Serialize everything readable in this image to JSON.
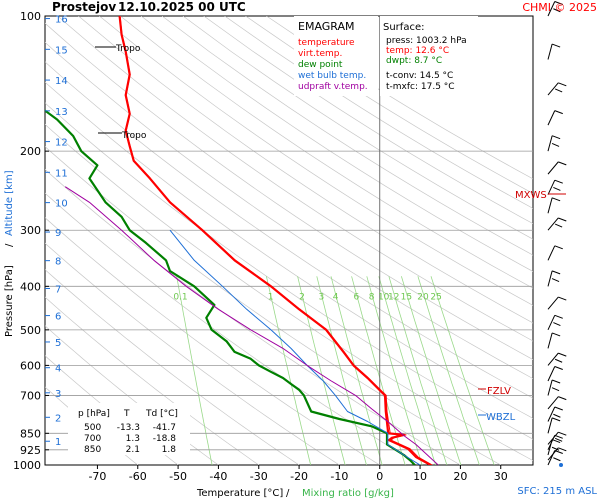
{
  "header": {
    "station": "Prostejov",
    "datetime": "12.10.2025 00 UTC",
    "credit": "CHMI © 2025"
  },
  "legend": {
    "title": "EMAGRAM",
    "items": [
      {
        "label": "temperature",
        "color": "#ff0000"
      },
      {
        "label": "virt.temp.",
        "color": "#ff0000"
      },
      {
        "label": "dew point",
        "color": "#008000"
      },
      {
        "label": "wet bulb temp.",
        "color": "#1e6fd6"
      },
      {
        "label": "udpraft v.temp.",
        "color": "#a000a0"
      }
    ]
  },
  "surface": {
    "title": "Surface:",
    "press": "press: 1003.2 hPa",
    "temp": "temp: 12.6 °C",
    "dwpt": "dwpt: 8.7 °C",
    "tconv": "t-conv: 14.5 °C",
    "tmxfc": "t-mxfc: 17.5 °C"
  },
  "table": {
    "headers": [
      "p [hPa]",
      "T",
      "Td [°C]"
    ],
    "rows": [
      [
        "500",
        "-13.3",
        "-41.7"
      ],
      [
        "700",
        "1.3",
        "-18.8"
      ],
      [
        "850",
        "2.1",
        "1.8"
      ]
    ]
  },
  "levels": {
    "mxws": "MXWS",
    "fzlv": "FZLV",
    "wbzl": "WBZL",
    "tropo": "Tropo",
    "sfc": "SFC: 215 m ASL"
  },
  "axes": {
    "xlabel_temp": "Temperature [°C]",
    "xlabel_sep": "/",
    "xlabel_mix": "Mixing ratio [g/kg]",
    "ylabel_press": "Pressure [hPa]",
    "ylabel_sep": "/",
    "ylabel_alt": "Altitude [km]"
  },
  "chart_data": {
    "type": "line",
    "x_ticks": [
      -70,
      -60,
      -50,
      -40,
      -30,
      -20,
      -10,
      0,
      10,
      20,
      30
    ],
    "x_range": [
      -83,
      38
    ],
    "y_range_hpa": [
      1000,
      100
    ],
    "y_scale": "log",
    "pressure_ticks": [
      100,
      200,
      300,
      400,
      500,
      600,
      700,
      850,
      925,
      1000
    ],
    "altitude_ticks_km": [
      1,
      2,
      3,
      4,
      5,
      6,
      7,
      8,
      9,
      10,
      11,
      12,
      13,
      14,
      15,
      16
    ],
    "mixing_ratio_labels": [
      "0.1",
      "1",
      "2",
      "3",
      "4",
      "6",
      "8",
      "10",
      "12",
      "15",
      "20",
      "25"
    ],
    "isotherm_zero_line": 0,
    "series": [
      {
        "name": "temperature",
        "color": "#ff0000",
        "points": [
          [
            12.6,
            1000
          ],
          [
            9,
            960
          ],
          [
            7,
            920
          ],
          [
            2.3,
            880
          ],
          [
            3,
            870
          ],
          [
            6,
            857
          ],
          [
            2.1,
            850
          ],
          [
            1.5,
            760
          ],
          [
            1.3,
            700
          ],
          [
            -3,
            640
          ],
          [
            -6.5,
            600
          ],
          [
            -9,
            560
          ],
          [
            -13.3,
            500
          ],
          [
            -20,
            450
          ],
          [
            -27,
            400
          ],
          [
            -36,
            350
          ],
          [
            -44,
            300
          ],
          [
            -52,
            260
          ],
          [
            -57,
            230
          ],
          [
            -61,
            210
          ],
          [
            -62,
            195
          ],
          [
            -63,
            180
          ],
          [
            -62,
            165
          ],
          [
            -63,
            150
          ],
          [
            -62,
            135
          ],
          [
            -63,
            120
          ],
          [
            -64,
            110
          ],
          [
            -64.5,
            100
          ]
        ]
      },
      {
        "name": "virt.temp.",
        "color": "#ff0000",
        "points": [
          [
            13,
            1000
          ],
          [
            9.5,
            960
          ],
          [
            7.5,
            920
          ],
          [
            2.8,
            880
          ],
          [
            3.5,
            870
          ],
          [
            6.5,
            857
          ],
          [
            2.6,
            850
          ],
          [
            1.8,
            760
          ],
          [
            1.6,
            700
          ],
          [
            -2.8,
            640
          ],
          [
            -6.3,
            600
          ],
          [
            -8.8,
            560
          ],
          [
            -13.1,
            500
          ],
          [
            -19.8,
            450
          ],
          [
            -26.8,
            400
          ],
          [
            -35.8,
            350
          ],
          [
            -43.8,
            300
          ],
          [
            -51.9,
            260
          ],
          [
            -56.9,
            230
          ],
          [
            -60.9,
            210
          ],
          [
            -61.9,
            195
          ],
          [
            -62.9,
            180
          ],
          [
            -61.9,
            165
          ],
          [
            -62.9,
            150
          ],
          [
            -61.9,
            135
          ],
          [
            -62.9,
            120
          ],
          [
            -63.9,
            110
          ],
          [
            -64.4,
            100
          ]
        ]
      },
      {
        "name": "dew point",
        "color": "#008000",
        "points": [
          [
            8.7,
            1000
          ],
          [
            7.5,
            975
          ],
          [
            6,
            950
          ],
          [
            1.8,
            900
          ],
          [
            1.8,
            850
          ],
          [
            -2,
            820
          ],
          [
            -10,
            790
          ],
          [
            -17,
            760
          ],
          [
            -18.8,
            700
          ],
          [
            -20,
            680
          ],
          [
            -22,
            660
          ],
          [
            -24,
            640
          ],
          [
            -27,
            620
          ],
          [
            -30,
            600
          ],
          [
            -32,
            580
          ],
          [
            -36,
            560
          ],
          [
            -38,
            530
          ],
          [
            -41.7,
            500
          ],
          [
            -43,
            470
          ],
          [
            -41,
            440
          ],
          [
            -46,
            400
          ],
          [
            -52,
            370
          ],
          [
            -53,
            350
          ],
          [
            -58,
            320
          ],
          [
            -62,
            300
          ],
          [
            -64,
            280
          ],
          [
            -68,
            260
          ],
          [
            -72,
            230
          ],
          [
            -70,
            215
          ],
          [
            -74,
            200
          ],
          [
            -76,
            185
          ],
          [
            -80,
            170
          ],
          [
            -84,
            160
          ]
        ]
      },
      {
        "name": "wet bulb temp.",
        "color": "#1e6fd6",
        "points": [
          [
            10,
            1000
          ],
          [
            6,
            950
          ],
          [
            2,
            900
          ],
          [
            2,
            850
          ],
          [
            -3,
            800
          ],
          [
            -8,
            760
          ],
          [
            -11,
            700
          ],
          [
            -14,
            650
          ],
          [
            -18,
            600
          ],
          [
            -22,
            550
          ],
          [
            -27,
            500
          ],
          [
            -33,
            450
          ],
          [
            -39,
            400
          ],
          [
            -46,
            350
          ],
          [
            -52,
            300
          ]
        ]
      },
      {
        "name": "udpraft v.temp.",
        "color": "#a000a0",
        "points": [
          [
            14.5,
            1000
          ],
          [
            9,
            900
          ],
          [
            6,
            860
          ],
          [
            2,
            800
          ],
          [
            -2,
            750
          ],
          [
            -6,
            700
          ],
          [
            -12,
            650
          ],
          [
            -18,
            600
          ],
          [
            -24,
            550
          ],
          [
            -32,
            500
          ],
          [
            -40,
            450
          ],
          [
            -48,
            400
          ],
          [
            -56,
            350
          ],
          [
            -64,
            300
          ],
          [
            -72,
            260
          ],
          [
            -78,
            240
          ]
        ]
      }
    ],
    "wind_barbs_hpa": [
      1000,
      975,
      950,
      925,
      900,
      850,
      800,
      750,
      700,
      650,
      600,
      550,
      500,
      450,
      400,
      350,
      300,
      275,
      250,
      225,
      200,
      175,
      150,
      125,
      100
    ]
  }
}
